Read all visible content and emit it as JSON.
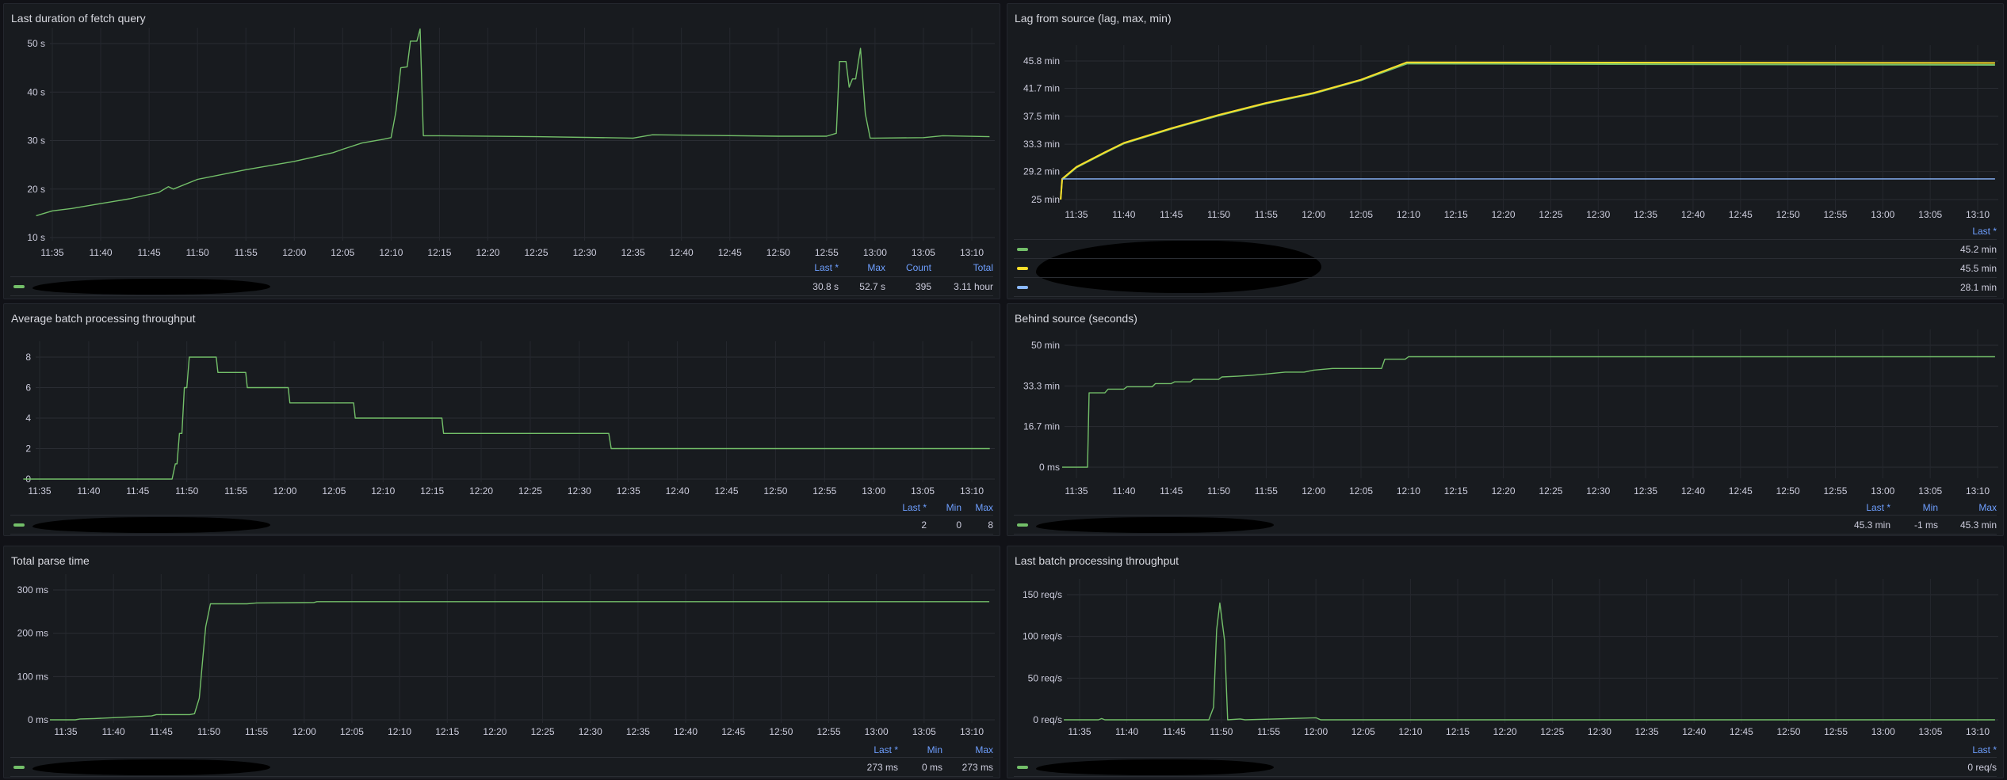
{
  "colors": {
    "green": "#73bf69",
    "yellow": "#fade2a",
    "blue": "#8ab8ff",
    "legend_header": "#6e9fff",
    "panel_bg": "#181b1f",
    "page_bg": "#111217"
  },
  "x_ticks": [
    "11:35",
    "11:40",
    "11:45",
    "11:50",
    "11:55",
    "12:00",
    "12:05",
    "12:10",
    "12:15",
    "12:20",
    "12:25",
    "12:30",
    "12:35",
    "12:40",
    "12:45",
    "12:50",
    "12:55",
    "13:00",
    "13:05",
    "13:10"
  ],
  "chart_data": [
    {
      "type": "line",
      "title": "Last duration of fetch query",
      "xlim": [
        "11:33:20",
        "13:11:50"
      ],
      "ylim": [
        10,
        56
      ],
      "y_ticks": [
        {
          "v": 10,
          "label": "10 s"
        },
        {
          "v": 20,
          "label": "20 s"
        },
        {
          "v": 30,
          "label": "30 s"
        },
        {
          "v": 40,
          "label": "40 s"
        },
        {
          "v": 50,
          "label": "50 s"
        }
      ],
      "legend": {
        "headers": [
          "Last *",
          "Max",
          "Count",
          "Total"
        ],
        "rows": [
          {
            "color": "green",
            "values": [
              "30.8 s",
              "52.7 s",
              "395",
              "3.11 hour"
            ]
          }
        ]
      },
      "series": [
        {
          "color": "green",
          "points": [
            [
              "11:33:20",
              14.5
            ],
            [
              "11:35",
              15.5
            ],
            [
              "11:37",
              16
            ],
            [
              "11:40",
              17
            ],
            [
              "11:43",
              18
            ],
            [
              "11:46",
              19.3
            ],
            [
              "11:47",
              20.5
            ],
            [
              "11:47:30",
              20
            ],
            [
              "11:50",
              22
            ],
            [
              "11:55",
              24
            ],
            [
              "12:00",
              25.7
            ],
            [
              "12:04",
              27.5
            ],
            [
              "12:05",
              28.2
            ],
            [
              "12:07",
              29.5
            ],
            [
              "12:09",
              30.2
            ],
            [
              "12:10",
              30.6
            ],
            [
              "12:10:30",
              36
            ],
            [
              "12:11",
              45
            ],
            [
              "12:11:40",
              45.2
            ],
            [
              "12:12",
              50.5
            ],
            [
              "12:12:40",
              50.5
            ],
            [
              "12:13",
              53
            ],
            [
              "12:13:20",
              31
            ],
            [
              "12:15",
              31
            ],
            [
              "12:25",
              30.8
            ],
            [
              "12:35",
              30.5
            ],
            [
              "12:37",
              31.2
            ],
            [
              "12:50",
              30.9
            ],
            [
              "12:55",
              30.9
            ],
            [
              "12:56",
              31.5
            ],
            [
              "12:56:20",
              46.3
            ],
            [
              "12:57",
              46.3
            ],
            [
              "12:57:20",
              41
            ],
            [
              "12:57:40",
              42.7
            ],
            [
              "12:58",
              42.7
            ],
            [
              "12:58:30",
              49
            ],
            [
              "12:59",
              35.5
            ],
            [
              "12:59:30",
              30.5
            ],
            [
              "13:00",
              30.5
            ],
            [
              "13:05",
              30.6
            ],
            [
              "13:07",
              31
            ],
            [
              "13:11:50",
              30.8
            ]
          ]
        }
      ]
    },
    {
      "type": "line",
      "title": "Lag from source (lag, max, min)",
      "xlim": [
        "11:33:20",
        "13:11:50"
      ],
      "ylim": [
        25,
        47.2
      ],
      "y_ticks": [
        {
          "v": 25,
          "label": "25 min"
        },
        {
          "v": 29.2,
          "label": "29.2 min"
        },
        {
          "v": 33.3,
          "label": "33.3 min"
        },
        {
          "v": 37.5,
          "label": "37.5 min"
        },
        {
          "v": 41.7,
          "label": "41.7 min"
        },
        {
          "v": 45.8,
          "label": "45.8 min"
        }
      ],
      "legend": {
        "headers": [
          "Last *"
        ],
        "rows": [
          {
            "color": "green",
            "values": [
              "45.2 min"
            ]
          },
          {
            "color": "yellow",
            "values": [
              "45.5 min"
            ]
          },
          {
            "color": "blue",
            "values": [
              "28.1 min"
            ]
          }
        ]
      },
      "series": [
        {
          "color": "green",
          "points": [
            [
              "11:33:20",
              25
            ],
            [
              "11:33:30",
              28
            ],
            [
              "11:35",
              29.8
            ],
            [
              "11:38",
              32
            ],
            [
              "11:40",
              33.4
            ],
            [
              "11:45",
              35.6
            ],
            [
              "11:50",
              37.6
            ],
            [
              "11:55",
              39.4
            ],
            [
              "12:00",
              40.9
            ],
            [
              "12:05",
              42.9
            ],
            [
              "12:09:50",
              45.4
            ],
            [
              "13:11:50",
              45.2
            ]
          ]
        },
        {
          "color": "yellow",
          "points": [
            [
              "11:33:20",
              25
            ],
            [
              "11:33:30",
              28.1
            ],
            [
              "11:35",
              29.9
            ],
            [
              "11:38",
              32.1
            ],
            [
              "11:40",
              33.5
            ],
            [
              "11:45",
              35.7
            ],
            [
              "11:50",
              37.7
            ],
            [
              "11:55",
              39.5
            ],
            [
              "12:00",
              41
            ],
            [
              "12:05",
              43
            ],
            [
              "12:09:50",
              45.6
            ],
            [
              "13:11:50",
              45.5
            ]
          ]
        },
        {
          "color": "blue",
          "points": [
            [
              "11:33:30",
              28.1
            ],
            [
              "13:11:50",
              28.1
            ]
          ]
        }
      ]
    },
    {
      "type": "line",
      "title": "Average batch processing throughput",
      "xlim": [
        "11:33:20",
        "13:11:50"
      ],
      "ylim": [
        0,
        8.8
      ],
      "y_ticks": [
        {
          "v": 0,
          "label": "0"
        },
        {
          "v": 2,
          "label": "2"
        },
        {
          "v": 4,
          "label": "4"
        },
        {
          "v": 6,
          "label": "6"
        },
        {
          "v": 8,
          "label": "8"
        }
      ],
      "legend": {
        "headers": [
          "Last *",
          "Min",
          "Max"
        ],
        "rows": [
          {
            "color": "green",
            "values": [
              "2",
              "0",
              "8"
            ]
          }
        ]
      },
      "series": [
        {
          "color": "green",
          "points": [
            [
              "11:33:20",
              0
            ],
            [
              "11:48:30",
              0
            ],
            [
              "11:48:50",
              1
            ],
            [
              "11:49",
              1
            ],
            [
              "11:49:15",
              3
            ],
            [
              "11:49:30",
              3
            ],
            [
              "11:49:45",
              6
            ],
            [
              "11:50",
              6
            ],
            [
              "11:50:15",
              8
            ],
            [
              "11:53",
              8
            ],
            [
              "11:53:10",
              7
            ],
            [
              "11:56",
              7
            ],
            [
              "11:56:10",
              6
            ],
            [
              "12:00:20",
              6
            ],
            [
              "12:00:30",
              5
            ],
            [
              "12:07",
              5
            ],
            [
              "12:07:10",
              4
            ],
            [
              "12:16",
              4
            ],
            [
              "12:16:10",
              3
            ],
            [
              "12:33",
              3
            ],
            [
              "12:33:15",
              2
            ],
            [
              "13:11:50",
              2
            ]
          ]
        }
      ]
    },
    {
      "type": "line",
      "title": "Behind source (seconds)",
      "xlim": [
        "11:33:20",
        "13:11:50"
      ],
      "ylim": [
        0,
        50
      ],
      "y_ticks": [
        {
          "v": 0,
          "label": "0 ms"
        },
        {
          "v": 16.7,
          "label": "16.7 min"
        },
        {
          "v": 33.3,
          "label": "33.3 min"
        },
        {
          "v": 50,
          "label": "50 min"
        }
      ],
      "legend": {
        "headers": [
          "Last *",
          "Min",
          "Max"
        ],
        "rows": [
          {
            "color": "green",
            "values": [
              "45.3 min",
              "-1 ms",
              "45.3 min"
            ]
          }
        ]
      },
      "series": [
        {
          "color": "green",
          "points": [
            [
              "11:33:30",
              0
            ],
            [
              "11:36:10",
              0
            ],
            [
              "11:36:20",
              30.5
            ],
            [
              "11:38",
              30.5
            ],
            [
              "11:38:20",
              32
            ],
            [
              "11:40",
              32
            ],
            [
              "11:40:20",
              33
            ],
            [
              "11:43",
              33
            ],
            [
              "11:43:20",
              34.3
            ],
            [
              "11:45",
              34.3
            ],
            [
              "11:45:20",
              35
            ],
            [
              "11:47",
              35
            ],
            [
              "11:47:20",
              36
            ],
            [
              "11:50",
              36
            ],
            [
              "11:50:20",
              37
            ],
            [
              "11:52",
              37.3
            ],
            [
              "11:53:30",
              37.7
            ],
            [
              "11:55",
              38.2
            ],
            [
              "11:57",
              39
            ],
            [
              "11:59",
              39
            ],
            [
              "12:00",
              39.8
            ],
            [
              "12:02",
              40.5
            ],
            [
              "12:07:10",
              40.5
            ],
            [
              "12:07:30",
              44.3
            ],
            [
              "12:09:40",
              44.3
            ],
            [
              "12:10",
              45.3
            ],
            [
              "13:11:50",
              45.3
            ]
          ]
        }
      ]
    },
    {
      "type": "line",
      "title": "Total parse time",
      "xlim": [
        "11:33:20",
        "13:11:50"
      ],
      "ylim": [
        0,
        300
      ],
      "y_ticks": [
        {
          "v": 0,
          "label": "0 ms"
        },
        {
          "v": 100,
          "label": "100 ms"
        },
        {
          "v": 200,
          "label": "200 ms"
        },
        {
          "v": 300,
          "label": "300 ms"
        }
      ],
      "legend": {
        "headers": [
          "Last *",
          "Min",
          "Max"
        ],
        "rows": [
          {
            "color": "green",
            "values": [
              "273 ms",
              "0 ms",
              "273 ms"
            ]
          }
        ]
      },
      "series": [
        {
          "color": "green",
          "points": [
            [
              "11:33:20",
              0
            ],
            [
              "11:36",
              0
            ],
            [
              "11:36:30",
              2
            ],
            [
              "11:38",
              3
            ],
            [
              "11:40",
              5
            ],
            [
              "11:42",
              7
            ],
            [
              "11:44",
              9
            ],
            [
              "11:44:30",
              12
            ],
            [
              "11:48",
              12
            ],
            [
              "11:48:30",
              14
            ],
            [
              "11:49",
              50
            ],
            [
              "11:49:20",
              135
            ],
            [
              "11:49:40",
              215
            ],
            [
              "11:50:10",
              268
            ],
            [
              "11:54",
              268
            ],
            [
              "11:55",
              270
            ],
            [
              "12:01",
              271
            ],
            [
              "12:01:20",
              273
            ],
            [
              "13:11:50",
              273
            ]
          ]
        }
      ]
    },
    {
      "type": "line",
      "title": "Last batch processing throughput",
      "xlim": [
        "11:33:20",
        "13:11:50"
      ],
      "ylim": [
        0,
        160
      ],
      "y_ticks": [
        {
          "v": 0,
          "label": "0 req/s"
        },
        {
          "v": 50,
          "label": "50 req/s"
        },
        {
          "v": 100,
          "label": "100 req/s"
        },
        {
          "v": 150,
          "label": "150 req/s"
        }
      ],
      "legend": {
        "headers": [
          "Last *"
        ],
        "rows": [
          {
            "color": "green",
            "values": [
              "0 req/s"
            ]
          }
        ]
      },
      "series": [
        {
          "color": "green",
          "points": [
            [
              "11:33:20",
              0
            ],
            [
              "11:37",
              0
            ],
            [
              "11:37:20",
              1.5
            ],
            [
              "11:37:40",
              0
            ],
            [
              "11:48:40",
              0
            ],
            [
              "11:49:10",
              15
            ],
            [
              "11:49:30",
              108
            ],
            [
              "11:49:50",
              140
            ],
            [
              "11:50:20",
              95
            ],
            [
              "11:50:40",
              0
            ],
            [
              "11:52",
              1
            ],
            [
              "11:52:30",
              0
            ],
            [
              "12:00",
              2.5
            ],
            [
              "12:00:30",
              0
            ],
            [
              "13:11:50",
              0
            ]
          ]
        }
      ]
    }
  ]
}
